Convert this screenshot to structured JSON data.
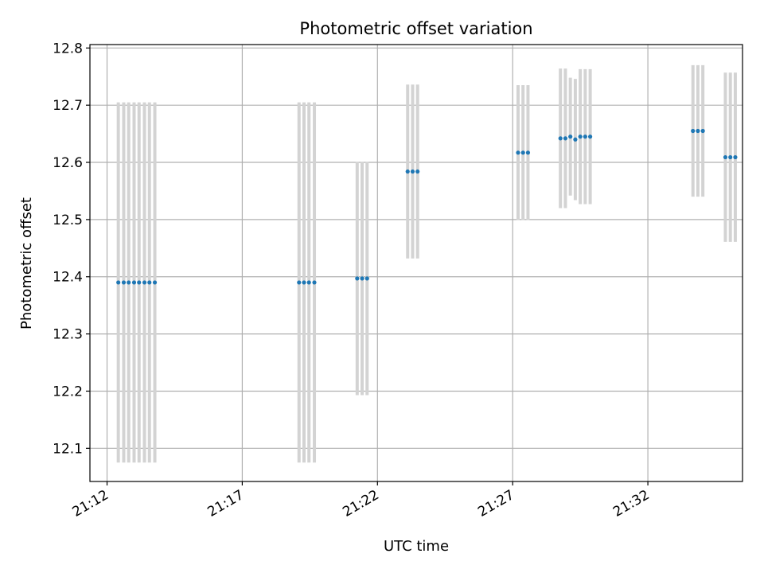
{
  "chart_data": {
    "type": "scatter",
    "title": "Photometric offset variation",
    "xlabel": "UTC time",
    "ylabel": "Photometric offset",
    "xlim": [
      "21:11:22",
      "21:35:30"
    ],
    "ylim": [
      12.042,
      12.806
    ],
    "x_ticks": [
      "21:12",
      "21:17",
      "21:22",
      "21:27",
      "21:32"
    ],
    "y_ticks": [
      12.1,
      12.2,
      12.3,
      12.4,
      12.5,
      12.6,
      12.7,
      12.8
    ],
    "y_tick_labels": [
      "12.1",
      "12.2",
      "12.3",
      "12.4",
      "12.5",
      "12.6",
      "12.7",
      "12.8"
    ],
    "grid": true,
    "colors": {
      "point": "#1f77b4",
      "errorbar": "#d3d3d3",
      "grid": "#b0b0b0"
    },
    "points": [
      {
        "time": "21:12:25",
        "y": 12.39,
        "err": 0.315
      },
      {
        "time": "21:12:37",
        "y": 12.39,
        "err": 0.315
      },
      {
        "time": "21:12:48",
        "y": 12.39,
        "err": 0.315
      },
      {
        "time": "21:13:00",
        "y": 12.39,
        "err": 0.315
      },
      {
        "time": "21:13:11",
        "y": 12.39,
        "err": 0.315
      },
      {
        "time": "21:13:23",
        "y": 12.39,
        "err": 0.315
      },
      {
        "time": "21:13:34",
        "y": 12.39,
        "err": 0.315
      },
      {
        "time": "21:13:46",
        "y": 12.39,
        "err": 0.315
      },
      {
        "time": "21:19:06",
        "y": 12.39,
        "err": 0.315
      },
      {
        "time": "21:19:17",
        "y": 12.39,
        "err": 0.315
      },
      {
        "time": "21:19:28",
        "y": 12.39,
        "err": 0.315
      },
      {
        "time": "21:19:40",
        "y": 12.39,
        "err": 0.315
      },
      {
        "time": "21:21:15",
        "y": 12.397,
        "err": 0.204
      },
      {
        "time": "21:21:26",
        "y": 12.397,
        "err": 0.204
      },
      {
        "time": "21:21:37",
        "y": 12.397,
        "err": 0.204
      },
      {
        "time": "21:23:07",
        "y": 12.584,
        "err": 0.152
      },
      {
        "time": "21:23:18",
        "y": 12.584,
        "err": 0.152
      },
      {
        "time": "21:23:29",
        "y": 12.584,
        "err": 0.152
      },
      {
        "time": "21:27:12",
        "y": 12.617,
        "err": 0.118
      },
      {
        "time": "21:27:23",
        "y": 12.617,
        "err": 0.118
      },
      {
        "time": "21:27:34",
        "y": 12.617,
        "err": 0.118
      },
      {
        "time": "21:28:46",
        "y": 12.642,
        "err": 0.122
      },
      {
        "time": "21:28:57",
        "y": 12.642,
        "err": 0.122
      },
      {
        "time": "21:29:08",
        "y": 12.645,
        "err": 0.103
      },
      {
        "time": "21:29:19",
        "y": 12.64,
        "err": 0.106
      },
      {
        "time": "21:29:30",
        "y": 12.645,
        "err": 0.118
      },
      {
        "time": "21:29:41",
        "y": 12.645,
        "err": 0.118
      },
      {
        "time": "21:29:52",
        "y": 12.645,
        "err": 0.118
      },
      {
        "time": "21:33:40",
        "y": 12.655,
        "err": 0.115
      },
      {
        "time": "21:33:51",
        "y": 12.655,
        "err": 0.115
      },
      {
        "time": "21:34:02",
        "y": 12.655,
        "err": 0.115
      },
      {
        "time": "21:34:52",
        "y": 12.609,
        "err": 0.148
      },
      {
        "time": "21:35:03",
        "y": 12.609,
        "err": 0.148
      },
      {
        "time": "21:35:14",
        "y": 12.609,
        "err": 0.148
      }
    ]
  }
}
